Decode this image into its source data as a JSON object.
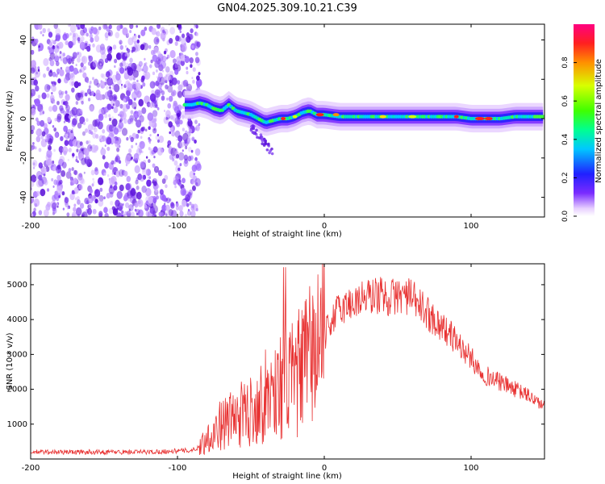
{
  "title": "GN04.2025.309.10.21.C39",
  "chart_data": [
    {
      "type": "heatmap",
      "name": "spectrogram",
      "xlabel": "Height of straight line (km)",
      "ylabel": "Frequency (Hz)",
      "xlim": [
        -200,
        150
      ],
      "ylim": [
        -50,
        48
      ],
      "xticks": [
        -200,
        -100,
        0,
        100
      ],
      "yticks": [
        -40,
        -20,
        0,
        20,
        40
      ],
      "colorbar": {
        "label": "Normalized spectral amplitude",
        "range": [
          0,
          1
        ],
        "ticks": [
          0.0,
          0.2,
          0.4,
          0.6,
          0.8
        ]
      },
      "ridge": {
        "x": [
          -95,
          -90,
          -85,
          -80,
          -75,
          -70,
          -65,
          -60,
          -55,
          -50,
          -45,
          -40,
          -35,
          -30,
          -25,
          -20,
          -15,
          -10,
          -5,
          0,
          10,
          20,
          40,
          60,
          80,
          90,
          100,
          110,
          120,
          130,
          140,
          150
        ],
        "freq": [
          7,
          7,
          8,
          7,
          5,
          4,
          7,
          4,
          3,
          2,
          0,
          -2,
          -1,
          0,
          0,
          1,
          3,
          4,
          2,
          2,
          1,
          1,
          1,
          1,
          1,
          1,
          0,
          0,
          0,
          1,
          1,
          1
        ]
      }
    },
    {
      "type": "line",
      "name": "snr",
      "xlabel": "Height of straight line (km)",
      "ylabel": "SNR (10 * v/v)",
      "xlim": [
        -200,
        150
      ],
      "ylim": [
        0,
        5600
      ],
      "xticks": [
        -200,
        -100,
        0,
        100
      ],
      "yticks": [
        1000,
        2000,
        3000,
        4000,
        5000
      ],
      "color": "#e83232",
      "series": [
        {
          "name": "SNR",
          "x": [
            -200,
            -180,
            -160,
            -140,
            -120,
            -100,
            -90,
            -85,
            -80,
            -75,
            -70,
            -65,
            -60,
            -55,
            -50,
            -45,
            -40,
            -35,
            -30,
            -27,
            -25,
            -20,
            -15,
            -10,
            -5,
            0,
            5,
            10,
            15,
            20,
            25,
            30,
            35,
            40,
            45,
            50,
            55,
            60,
            65,
            70,
            75,
            80,
            85,
            90,
            95,
            100,
            105,
            110,
            120,
            130,
            140,
            150
          ],
          "y": [
            200,
            200,
            200,
            200,
            200,
            230,
            250,
            350,
            600,
            800,
            1000,
            1100,
            1200,
            1300,
            1400,
            1600,
            1800,
            2000,
            2100,
            2400,
            2200,
            2300,
            2600,
            2900,
            3300,
            3500,
            4000,
            4300,
            4400,
            4500,
            4600,
            4650,
            4700,
            4700,
            4600,
            4700,
            4700,
            4600,
            4400,
            4200,
            4000,
            3800,
            3600,
            3400,
            3100,
            2900,
            2600,
            2400,
            2200,
            2000,
            1800,
            1500
          ]
        }
      ]
    }
  ]
}
